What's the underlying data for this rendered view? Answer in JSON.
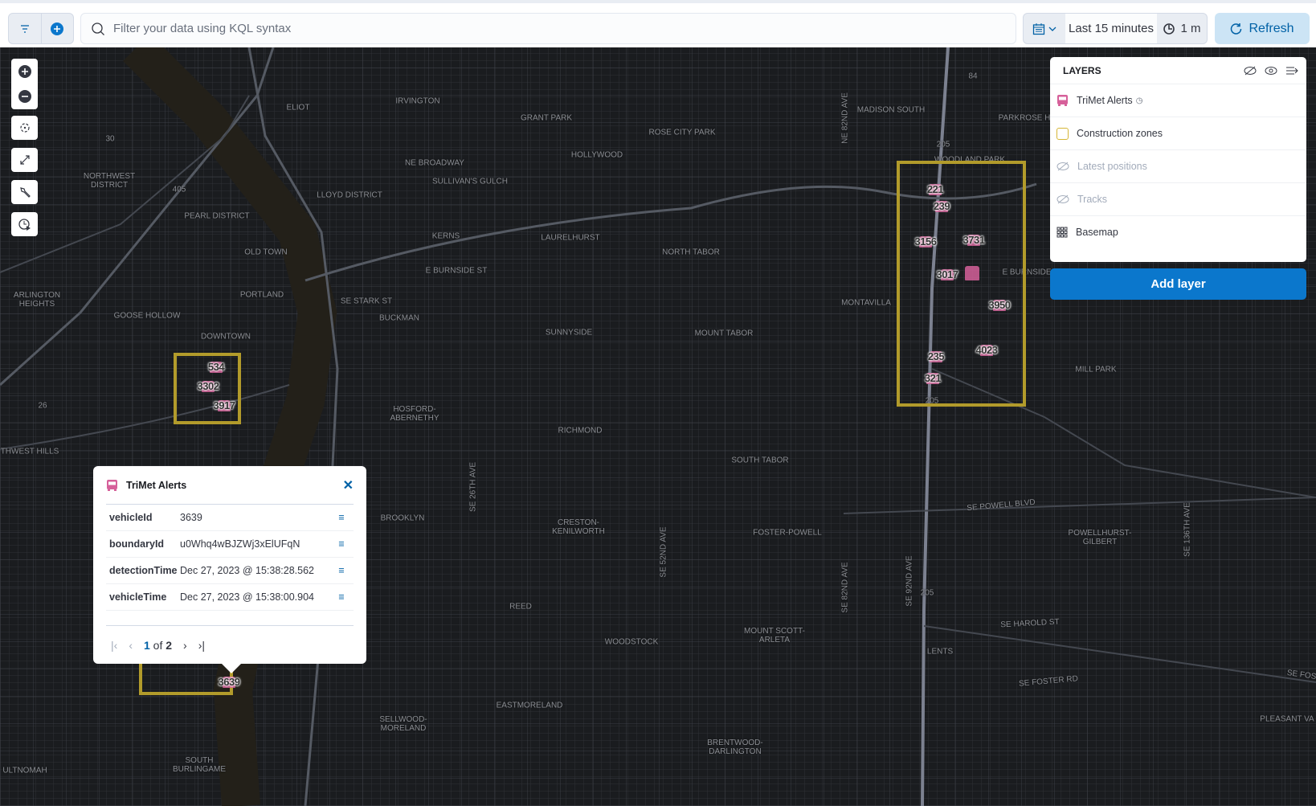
{
  "query_bar": {
    "search_placeholder": "Filter your data using KQL syntax",
    "time_range": "Last 15 minutes",
    "refresh_interval": "1 m",
    "refresh_label": "Refresh"
  },
  "map": {
    "labels": [
      "ELIOT",
      "IRVINGTON",
      "GRANT PARK",
      "ROSE CITY PARK",
      "HOLLYWOOD",
      "MADISON SOUTH",
      "PARKROSE H",
      "NE BROADWAY",
      "SULLIVAN'S GULCH",
      "NORTHWEST DISTRICT",
      "LLOYD DISTRICT",
      "PEARL DISTRICT",
      "KERNS",
      "LAURELHURST",
      "NORTH TABOR",
      "OLD TOWN",
      "E BURNSIDE ST",
      "ARLINGTON HEIGHTS",
      "PORTLAND",
      "SE STARK ST",
      "BUCKMAN",
      "GOOSE HOLLOW",
      "MONTAVILLA",
      "DOWNTOWN",
      "SUNNYSIDE",
      "MOUNT TABOR",
      "MILL PARK",
      "HOSFORD-ABERNETHY",
      "RICHMOND",
      "SOUTH TABOR",
      "THWEST HILLS",
      "BROOKLYN",
      "CRESTON-KENILWORTH",
      "FOSTER-POWELL",
      "SE POWELL BLVD",
      "POWELLHURST-GILBERT",
      "REED",
      "WOODSTOCK",
      "MOUNT SCOTT-ARLETA",
      "SE HAROLD ST",
      "LENTS",
      "SE FOSTER RD",
      "SE FOS",
      "PLEASANT VA",
      "EASTMORELAND",
      "SELLWOOD-MORELAND",
      "BRENTWOOD-DARLINGTON",
      "SOUTH BURLINGAME",
      "ULTNOMAH",
      "WOODLAND PARK",
      "E BURNSIDE",
      "84",
      "205",
      "30",
      "405",
      "26",
      "205",
      "205"
    ],
    "road_labels": [
      "NE 82ND AVE",
      "SE 26TH AVE",
      "SE 52ND AVE",
      "SE 82ND AVE",
      "SE 92ND AVE",
      "SE 136TH AVE"
    ],
    "markers": [
      "221",
      "239",
      "3156",
      "3731",
      "3017",
      "3950",
      "4023",
      "235",
      "321",
      "534",
      "3302",
      "3917",
      "3639"
    ],
    "zone_color": "#b29b2b",
    "alert_color": "#d6609a"
  },
  "layers": {
    "title": "LAYERS",
    "items": [
      {
        "label": "TriMet Alerts",
        "icon": "bus-icon",
        "visible": true
      },
      {
        "label": "Construction zones",
        "icon": "square-outline-icon",
        "visible": true
      },
      {
        "label": "Latest positions",
        "icon": "eye-closed-icon",
        "visible": false
      },
      {
        "label": "Tracks",
        "icon": "eye-closed-icon",
        "visible": false
      },
      {
        "label": "Basemap",
        "icon": "grid-icon",
        "visible": true
      }
    ],
    "add_layer": "Add layer"
  },
  "popup": {
    "title": "TriMet Alerts",
    "rows": [
      {
        "key": "vehicleId",
        "value": "3639"
      },
      {
        "key": "boundaryId",
        "value": "u0Whq4wBJZWj3xElUFqN"
      },
      {
        "key": "detectionTime",
        "value": "Dec 27, 2023 @ 15:38:28.562"
      },
      {
        "key": "vehicleTime",
        "value": "Dec 27, 2023 @ 15:38:00.904"
      }
    ],
    "page": "1",
    "of": "of",
    "total": "2"
  }
}
